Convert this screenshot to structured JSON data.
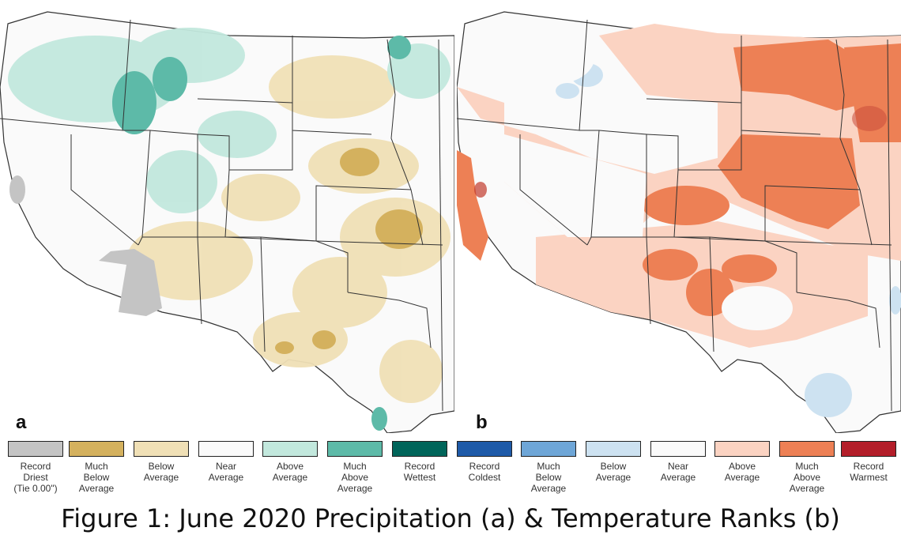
{
  "panels": [
    {
      "letter": "a",
      "variable": "precipitation"
    },
    {
      "letter": "b",
      "variable": "temperature"
    }
  ],
  "legend": [
    {
      "label": "Record\nDriest\n(Tie 0.00\")",
      "color": "#c4c4c4"
    },
    {
      "label": "Much\nBelow\nAverage",
      "color": "#d4b15e"
    },
    {
      "label": "Below\nAverage",
      "color": "#f0e0b6"
    },
    {
      "label": "Near\nAverage",
      "color": "#fafafa"
    },
    {
      "label": "Above\nAverage",
      "color": "#c2e8dd"
    },
    {
      "label": "Much\nAbove\nAverage",
      "color": "#5dbaa8"
    },
    {
      "label": "Record\nWettest",
      "color": "#00655a"
    },
    {
      "label": "Record\nColdest",
      "color": "#1e5aa8"
    },
    {
      "label": "Much\nBelow\nAverage",
      "color": "#6ea6d7"
    },
    {
      "label": "Below\nAverage",
      "color": "#cde2f1"
    },
    {
      "label": "Near\nAverage",
      "color": "#fafafa"
    },
    {
      "label": "Above\nAverage",
      "color": "#fbd3c2"
    },
    {
      "label": "Much\nAbove\nAverage",
      "color": "#ed8055"
    },
    {
      "label": "Record\nWarmest",
      "color": "#b31e2a"
    }
  ],
  "caption": "Figure 1: June 2020 Precipitation (a) & Temperature Ranks (b)"
}
